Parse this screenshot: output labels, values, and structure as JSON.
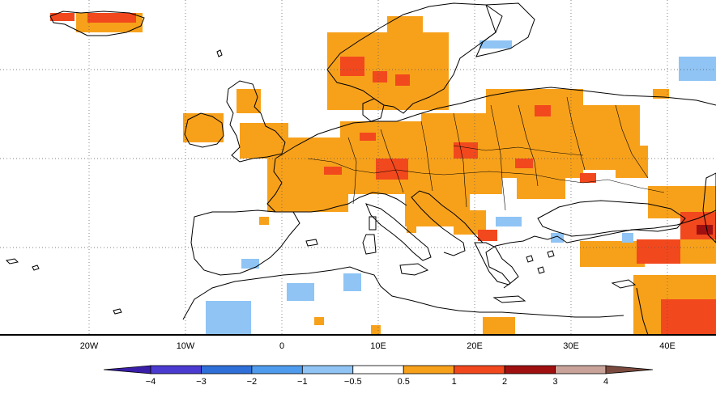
{
  "map": {
    "x_tick_labels": [
      "20W",
      "10W",
      "0",
      "10E",
      "20E",
      "30E",
      "40E"
    ],
    "x_tick_lons": [
      -20,
      -10,
      0,
      10,
      20,
      30,
      40
    ],
    "lon_range": [
      -29,
      45.5
    ],
    "lat_range": [
      27,
      72
    ],
    "grid_lat_lines": [
      35,
      45,
      55,
      65
    ],
    "grid": "dotted"
  },
  "legend": {
    "labels": [
      "−4",
      "−3",
      "−2",
      "−1",
      "−0.5",
      "0.5",
      "1",
      "2",
      "3",
      "4"
    ],
    "bins": [
      {
        "range": "< -4",
        "color": "#3a1ea8"
      },
      {
        "range": "-4 to -3",
        "color": "#4b3bd0"
      },
      {
        "range": "-3 to -2",
        "color": "#2f6fd8"
      },
      {
        "range": "-2 to -1",
        "color": "#4f9cee"
      },
      {
        "range": "-1 to -0.5",
        "color": "#8fc4f5"
      },
      {
        "range": "-0.5 to 0.5",
        "color": "#ffffff"
      },
      {
        "range": "0.5 to 1",
        "color": "#f7a11b"
      },
      {
        "range": "1 to 2",
        "color": "#f2481d"
      },
      {
        "range": "2 to 3",
        "color": "#a01010"
      },
      {
        "range": "3 to 4",
        "color": "#c9a39a"
      },
      {
        "range": "> 4",
        "color": "#7b4a3e"
      }
    ]
  },
  "colors": {
    "orange": "#f7a11b",
    "red": "#f2481d",
    "darkred": "#a01010",
    "lightblue": "#8fc4f5"
  }
}
